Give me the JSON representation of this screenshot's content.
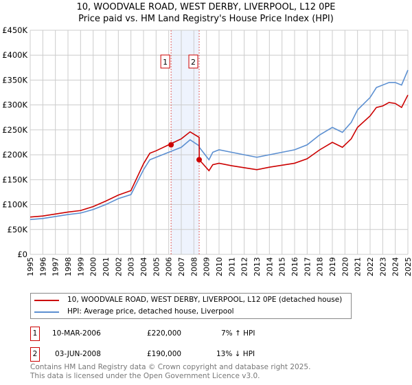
{
  "chart_data": {
    "type": "line",
    "title": "10, WOODVALE ROAD, WEST DERBY, LIVERPOOL, L12 0PE",
    "subtitle": "Price paid vs. HM Land Registry's House Price Index (HPI)",
    "xlim": [
      1995,
      2025
    ],
    "ylim": [
      0,
      450000
    ],
    "x_ticks": [
      "1995",
      "1996",
      "1997",
      "1998",
      "1999",
      "2000",
      "2001",
      "2002",
      "2003",
      "2004",
      "2005",
      "2006",
      "2007",
      "2008",
      "2009",
      "2010",
      "2011",
      "2012",
      "2013",
      "2014",
      "2015",
      "2016",
      "2017",
      "2018",
      "2019",
      "2020",
      "2021",
      "2022",
      "2023",
      "2024",
      "2025"
    ],
    "y_ticks": [
      {
        "v": 0,
        "label": "£0"
      },
      {
        "v": 50000,
        "label": "£50K"
      },
      {
        "v": 100000,
        "label": "£100K"
      },
      {
        "v": 150000,
        "label": "£150K"
      },
      {
        "v": 200000,
        "label": "£200K"
      },
      {
        "v": 250000,
        "label": "£250K"
      },
      {
        "v": 300000,
        "label": "£300K"
      },
      {
        "v": 350000,
        "label": "£350K"
      },
      {
        "v": 400000,
        "label": "£400K"
      },
      {
        "v": 450000,
        "label": "£450K"
      }
    ],
    "grid": true,
    "highlight_range": [
      2006.19,
      2008.42
    ],
    "x": [
      1995,
      1996,
      1997,
      1998,
      1999,
      2000,
      2001,
      2002,
      2003,
      2004,
      2004.5,
      2005,
      2006,
      2007,
      2007.7,
      2008.42,
      2008.43,
      2009.2,
      2009.5,
      2010,
      2011,
      2012,
      2013,
      2014,
      2015,
      2016,
      2017,
      2018,
      2019,
      2019.8,
      2020.5,
      2021,
      2022,
      2022.5,
      2023,
      2023.5,
      2024,
      2024.5,
      2025
    ],
    "series": [
      {
        "name": "10, WOODVALE ROAD, WEST DERBY, LIVERPOOL, L12 0PE (detached house)",
        "color": "#cc0000",
        "values": [
          75000,
          77000,
          81000,
          85000,
          88000,
          96000,
          107000,
          119000,
          128000,
          182000,
          203000,
          208000,
          220000,
          232000,
          246000,
          235000,
          190000,
          168000,
          180000,
          183000,
          178000,
          174000,
          170000,
          175000,
          179000,
          183000,
          192000,
          210000,
          225000,
          215000,
          232000,
          255000,
          278000,
          295000,
          298000,
          305000,
          303000,
          295000,
          320000
        ]
      },
      {
        "name": "HPI: Average price, detached house, Liverpool",
        "color": "#5b8fd1",
        "values": [
          70000,
          72000,
          76000,
          80000,
          83000,
          90000,
          100000,
          112000,
          120000,
          170000,
          190000,
          195000,
          205000,
          215000,
          230000,
          218000,
          215000,
          190000,
          205000,
          210000,
          205000,
          200000,
          195000,
          200000,
          205000,
          210000,
          220000,
          240000,
          255000,
          245000,
          265000,
          290000,
          315000,
          335000,
          340000,
          345000,
          345000,
          340000,
          370000
        ]
      }
    ],
    "sales": [
      {
        "id": "1",
        "x": 2006.19,
        "value": 220000,
        "date": "10-MAR-2006",
        "price": "£220,000",
        "hpi": "7% ↑ HPI"
      },
      {
        "id": "2",
        "x": 2008.42,
        "value": 190000,
        "date": "03-JUN-2008",
        "price": "£190,000",
        "hpi": "13% ↓ HPI"
      }
    ],
    "legend": "below"
  },
  "footer": {
    "line1": "Contains HM Land Registry data © Crown copyright and database right 2025.",
    "line2": "This data is licensed under the Open Government Licence v3.0."
  }
}
